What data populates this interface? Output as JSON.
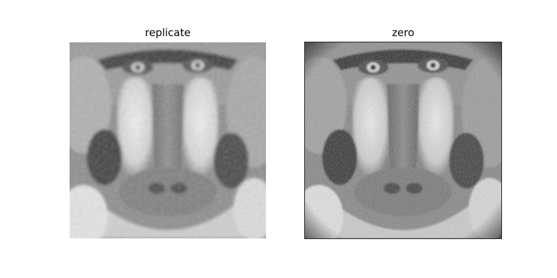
{
  "figure": {
    "panels": [
      {
        "title": "replicate"
      },
      {
        "title": "zero"
      }
    ]
  }
}
